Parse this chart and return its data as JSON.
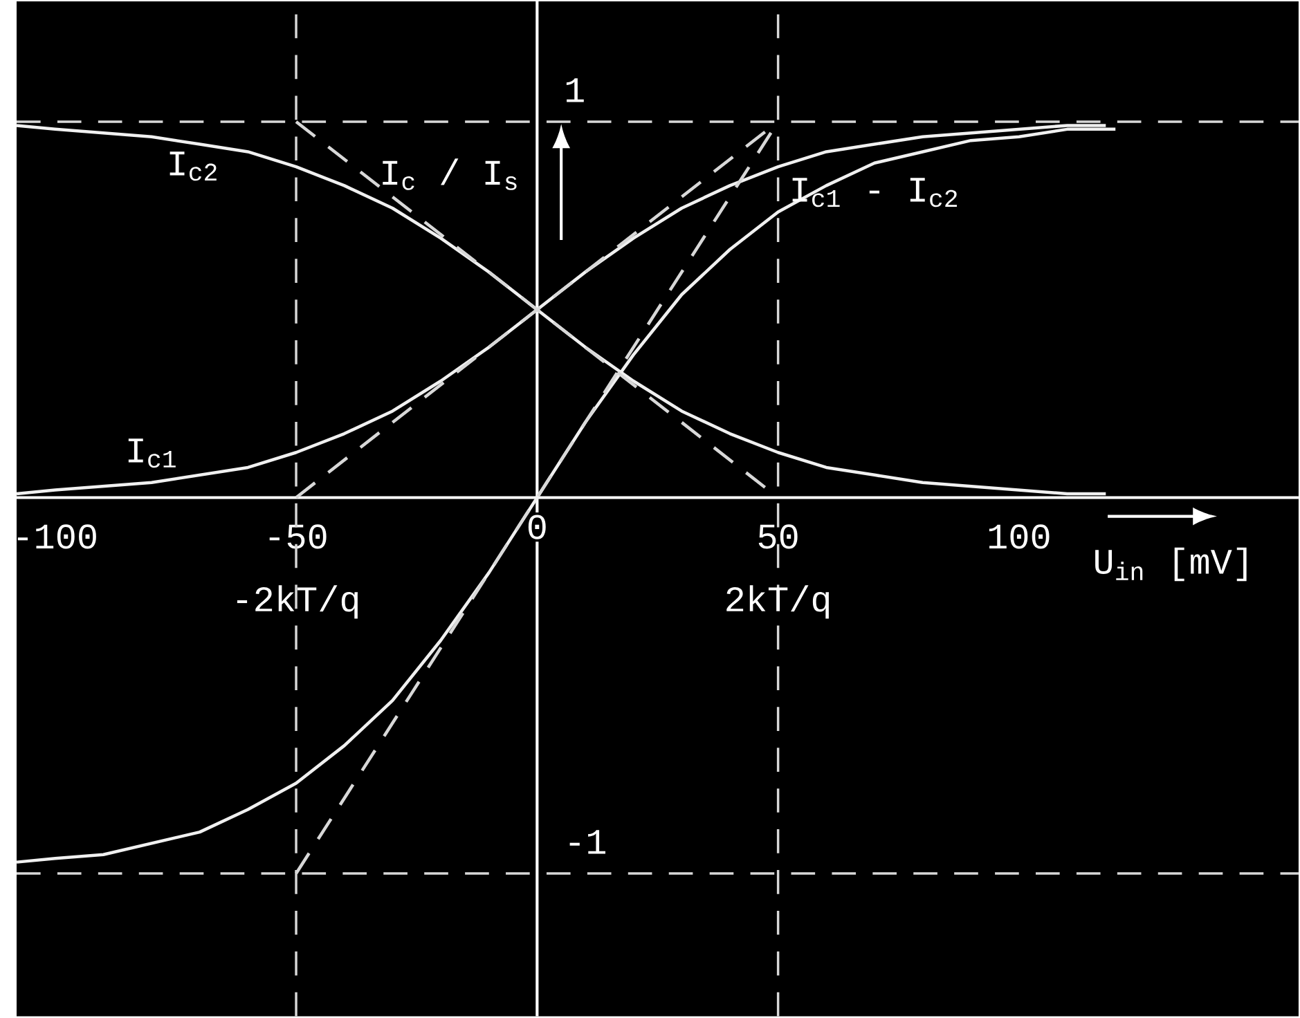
{
  "chart_data": {
    "type": "line",
    "xlabel": "U$_{in}$ [mV]",
    "ylabel": "I$_{c}$ / I$_{s}$",
    "xlim": [
      -108,
      158
    ],
    "ylim": [
      -1.38,
      1.32
    ],
    "xticks": [
      -100,
      -50,
      0,
      50,
      100
    ],
    "yticks": [
      -1,
      1
    ],
    "series": [
      {
        "name": "I$_{c2}$",
        "color": "#f0f0f0",
        "line_style": "solid",
        "x": [
          -108,
          -100,
          -90,
          -80,
          -70,
          -60,
          -50,
          -40,
          -30,
          -20,
          -10,
          0,
          10,
          20,
          30,
          40,
          50,
          60,
          70,
          80,
          90,
          100,
          110,
          118
        ],
        "values": [
          0.99,
          0.98,
          0.97,
          0.96,
          0.94,
          0.92,
          0.88,
          0.83,
          0.77,
          0.69,
          0.6,
          0.5,
          0.4,
          0.31,
          0.23,
          0.17,
          0.12,
          0.08,
          0.06,
          0.04,
          0.03,
          0.02,
          0.01,
          0.01
        ]
      },
      {
        "name": "I$_{c1}$",
        "color": "#f0f0f0",
        "line_style": "solid",
        "x": [
          -108,
          -100,
          -90,
          -80,
          -70,
          -60,
          -50,
          -40,
          -30,
          -20,
          -10,
          0,
          10,
          20,
          30,
          40,
          50,
          60,
          70,
          80,
          90,
          100,
          110,
          118
        ],
        "values": [
          0.01,
          0.02,
          0.03,
          0.04,
          0.06,
          0.08,
          0.12,
          0.17,
          0.23,
          0.31,
          0.4,
          0.5,
          0.6,
          0.69,
          0.77,
          0.83,
          0.88,
          0.92,
          0.94,
          0.96,
          0.97,
          0.98,
          0.99,
          0.99
        ]
      },
      {
        "name": "I$_{c1}$ - I$_{c2}$",
        "color": "#f0f0f0",
        "line_style": "solid",
        "x": [
          -108,
          -100,
          -90,
          -80,
          -70,
          -60,
          -50,
          -40,
          -30,
          -20,
          -10,
          0,
          10,
          20,
          30,
          40,
          50,
          60,
          70,
          80,
          90,
          100,
          110,
          120
        ],
        "values": [
          -0.97,
          -0.96,
          -0.95,
          -0.92,
          -0.89,
          -0.83,
          -0.76,
          -0.66,
          -0.54,
          -0.38,
          -0.2,
          0,
          0.2,
          0.38,
          0.54,
          0.66,
          0.76,
          0.83,
          0.89,
          0.92,
          0.95,
          0.96,
          0.98,
          0.98
        ]
      },
      {
        "color": "#d8d8d8",
        "line_style": "dashed",
        "x": [
          -50,
          50
        ],
        "values": [
          1,
          0
        ]
      },
      {
        "color": "#d8d8d8",
        "line_style": "dashed",
        "x": [
          -50,
          50
        ],
        "values": [
          0,
          1
        ]
      },
      {
        "color": "#d8d8d8",
        "line_style": "dashed",
        "x": [
          -50,
          50
        ],
        "values": [
          -1,
          1
        ]
      }
    ],
    "ref_lines": [
      {
        "axis": "y",
        "value": 1,
        "color": "#d8d8d8",
        "line_style": "dashed"
      },
      {
        "axis": "y",
        "value": -1,
        "color": "#d8d8d8",
        "line_style": "dashed"
      },
      {
        "axis": "x",
        "value": -50,
        "color": "#d8d8d8",
        "line_style": "dashed"
      },
      {
        "axis": "x",
        "value": 50,
        "color": "#d8d8d8",
        "line_style": "dashed"
      }
    ],
    "annotations": [
      {
        "text": "-2kT/q",
        "x": -50,
        "y": -0.2
      },
      {
        "text": "2kT/q",
        "x": 50,
        "y": -0.2
      }
    ]
  }
}
